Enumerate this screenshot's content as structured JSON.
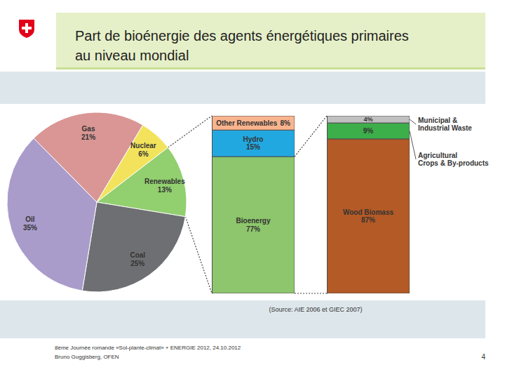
{
  "page": {
    "title": "Part de bioénergie des agents énergétiques primaires\nau niveau mondial",
    "source": "(Source: AIE 2006 et GIEC 2007)",
    "footer": [
      "8ème Journée romande «Sol-plante-climat» + ENERGIE 2012, 24.10.2012",
      "Bruno Guggisberg, OFEN"
    ],
    "page_number": 4
  },
  "chart_data": [
    {
      "type": "pie",
      "categories": [
        "Gas",
        "Nuclear",
        "Renewables",
        "Coal",
        "Oil"
      ],
      "values": [
        21,
        6,
        13,
        25,
        35
      ],
      "value_labels": [
        "21%",
        "6%",
        "13%",
        "25%",
        "35%"
      ],
      "colors": [
        "#d99694",
        "#f3e35c",
        "#92cf6f",
        "#6e6f72",
        "#a99ccb"
      ],
      "data_labels": true
    },
    {
      "type": "bar",
      "stacked": true,
      "categories": [
        null
      ],
      "series": [
        {
          "name": "Bioenergy",
          "color": "#8dc66c",
          "values": [
            77
          ],
          "value_labels": [
            "77%"
          ]
        },
        {
          "name": "Hydro",
          "color": "#22a8e0",
          "values": [
            15
          ],
          "value_labels": [
            "15%"
          ]
        },
        {
          "name": "Other Renewables",
          "color": "#f9b48e",
          "values": [
            8
          ],
          "value_labels": [
            "8%"
          ]
        }
      ],
      "ylim": [
        0,
        100
      ],
      "tick_labels": false,
      "data_labels": true
    },
    {
      "type": "bar",
      "stacked": true,
      "categories": [
        null
      ],
      "series": [
        {
          "name": "Wood Biomass",
          "color": "#b35a26",
          "values": [
            87
          ],
          "value_labels": [
            "87%"
          ]
        },
        {
          "name": "Agricultural\nCrops & By-products",
          "color": "#3cae4a",
          "values": [
            9
          ],
          "value_labels": [
            "9%"
          ]
        },
        {
          "name": "Municipal &\nIndustrial Waste",
          "color": "#c0c0c0",
          "values": [
            4
          ],
          "value_labels": [
            "4%"
          ]
        }
      ],
      "ylim": [
        0,
        100
      ],
      "tick_labels": false,
      "data_labels": true
    }
  ]
}
